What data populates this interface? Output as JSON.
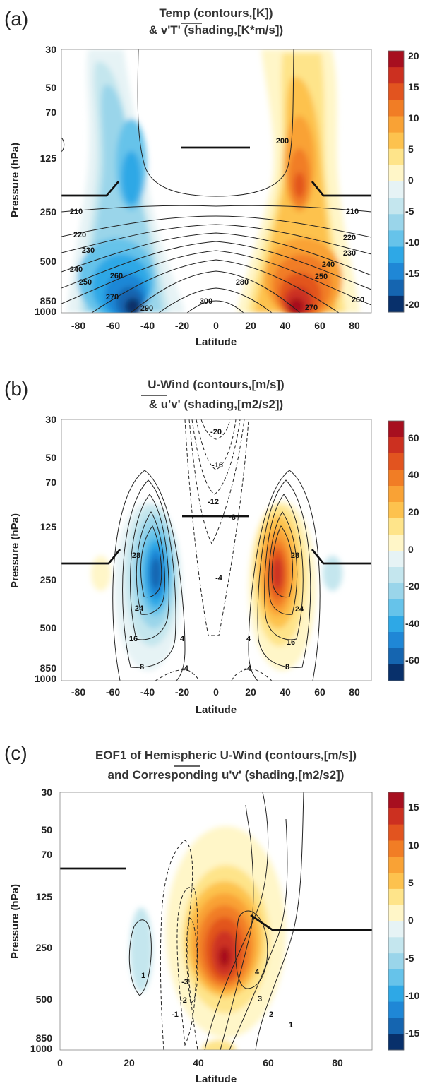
{
  "colors": {
    "negative": [
      "#08306b",
      "#1565b0",
      "#1f87d6",
      "#2ea8e6",
      "#66c3ea",
      "#9ad5ea",
      "#c4e6ee",
      "#e6f3f5"
    ],
    "positive": [
      "#fff6c8",
      "#fee48a",
      "#fdc24e",
      "#f9a235",
      "#f17d25",
      "#e2541f",
      "#cc3020",
      "#a70f1f"
    ],
    "contour": "#222222",
    "boundary": "#111111"
  },
  "chart_data": [
    {
      "panel_label": "(a)",
      "title_line1": "Temp (contours,[K])",
      "title_line2": "& v'T' (shading,[K*m/s])",
      "type": "contour",
      "xlabel": "Latitude",
      "ylabel": "Pressure (hPa)",
      "x_ticks": [
        "-80",
        "-60",
        "-40",
        "-20",
        "0",
        "20",
        "40",
        "60",
        "80"
      ],
      "y_ticks": [
        "30",
        "50",
        "70",
        "125",
        "250",
        "500",
        "850",
        "1000"
      ],
      "xlim": [
        -90,
        90
      ],
      "ylim": [
        1000,
        30
      ],
      "colorbar_ticks": [
        "20",
        "15",
        "10",
        "5",
        "0",
        "-5",
        "-10",
        "-15",
        "-20"
      ],
      "colorbar_range": [
        -21,
        21
      ],
      "shading_extrema": [
        {
          "lat": -40,
          "p": 900,
          "value": -21
        },
        {
          "lat": -47,
          "p": 170,
          "value": -14
        },
        {
          "lat": 42,
          "p": 900,
          "value": 21
        },
        {
          "lat": 47,
          "p": 170,
          "value": 14
        }
      ],
      "contour_labels": [
        "200",
        "210",
        "210",
        "220",
        "220",
        "230",
        "230",
        "240",
        "240",
        "250",
        "250",
        "260",
        "260",
        "270",
        "270",
        "280",
        "290",
        "300"
      ]
    },
    {
      "panel_label": "(b)",
      "title_line1": "U-Wind (contours,[m/s])",
      "title_line2": "& u'v' (shading,[m2/s2])",
      "type": "contour",
      "xlabel": "Latitude",
      "ylabel": "Pressure (hPa)",
      "x_ticks": [
        "-80",
        "-60",
        "-40",
        "-20",
        "0",
        "20",
        "40",
        "60",
        "80"
      ],
      "y_ticks": [
        "30",
        "50",
        "70",
        "125",
        "250",
        "500",
        "850",
        "1000"
      ],
      "xlim": [
        -90,
        90
      ],
      "ylim": [
        1000,
        30
      ],
      "colorbar_ticks": [
        "60",
        "40",
        "20",
        "0",
        "-20",
        "-40",
        "-60"
      ],
      "colorbar_range": [
        -70,
        70
      ],
      "shading_extrema": [
        {
          "lat": -35,
          "p": 260,
          "value": -65
        },
        {
          "lat": 37,
          "p": 260,
          "value": 65
        }
      ],
      "contour_labels": [
        "-20",
        "-16",
        "-12",
        "-8",
        "-4",
        "28",
        "28",
        "24",
        "24",
        "16",
        "16",
        "8",
        "8",
        "4",
        "4",
        "-4",
        "-4"
      ]
    },
    {
      "panel_label": "(c)",
      "title_line1": "EOF1 of Hemispheric U-Wind (contours,[m/s])",
      "title_line2": "and Corresponding u'v' (shading,[m2/s2])",
      "type": "contour",
      "xlabel": "Latitude",
      "ylabel": "Pressure (hPa)",
      "x_ticks": [
        "0",
        "20",
        "40",
        "60",
        "80"
      ],
      "y_ticks": [
        "30",
        "50",
        "70",
        "125",
        "250",
        "500",
        "850",
        "1000"
      ],
      "xlim": [
        0,
        90
      ],
      "ylim": [
        1000,
        30
      ],
      "colorbar_ticks": [
        "15",
        "10",
        "5",
        "0",
        "-5",
        "-10",
        "-15"
      ],
      "colorbar_range": [
        -17,
        17
      ],
      "shading_extrema": [
        {
          "lat": 48,
          "p": 260,
          "value": 17
        },
        {
          "lat": 25,
          "p": 270,
          "value": -3
        }
      ],
      "contour_labels": [
        "1",
        "-1",
        "-2",
        "-3",
        "3",
        "4",
        "2",
        "1"
      ]
    }
  ]
}
